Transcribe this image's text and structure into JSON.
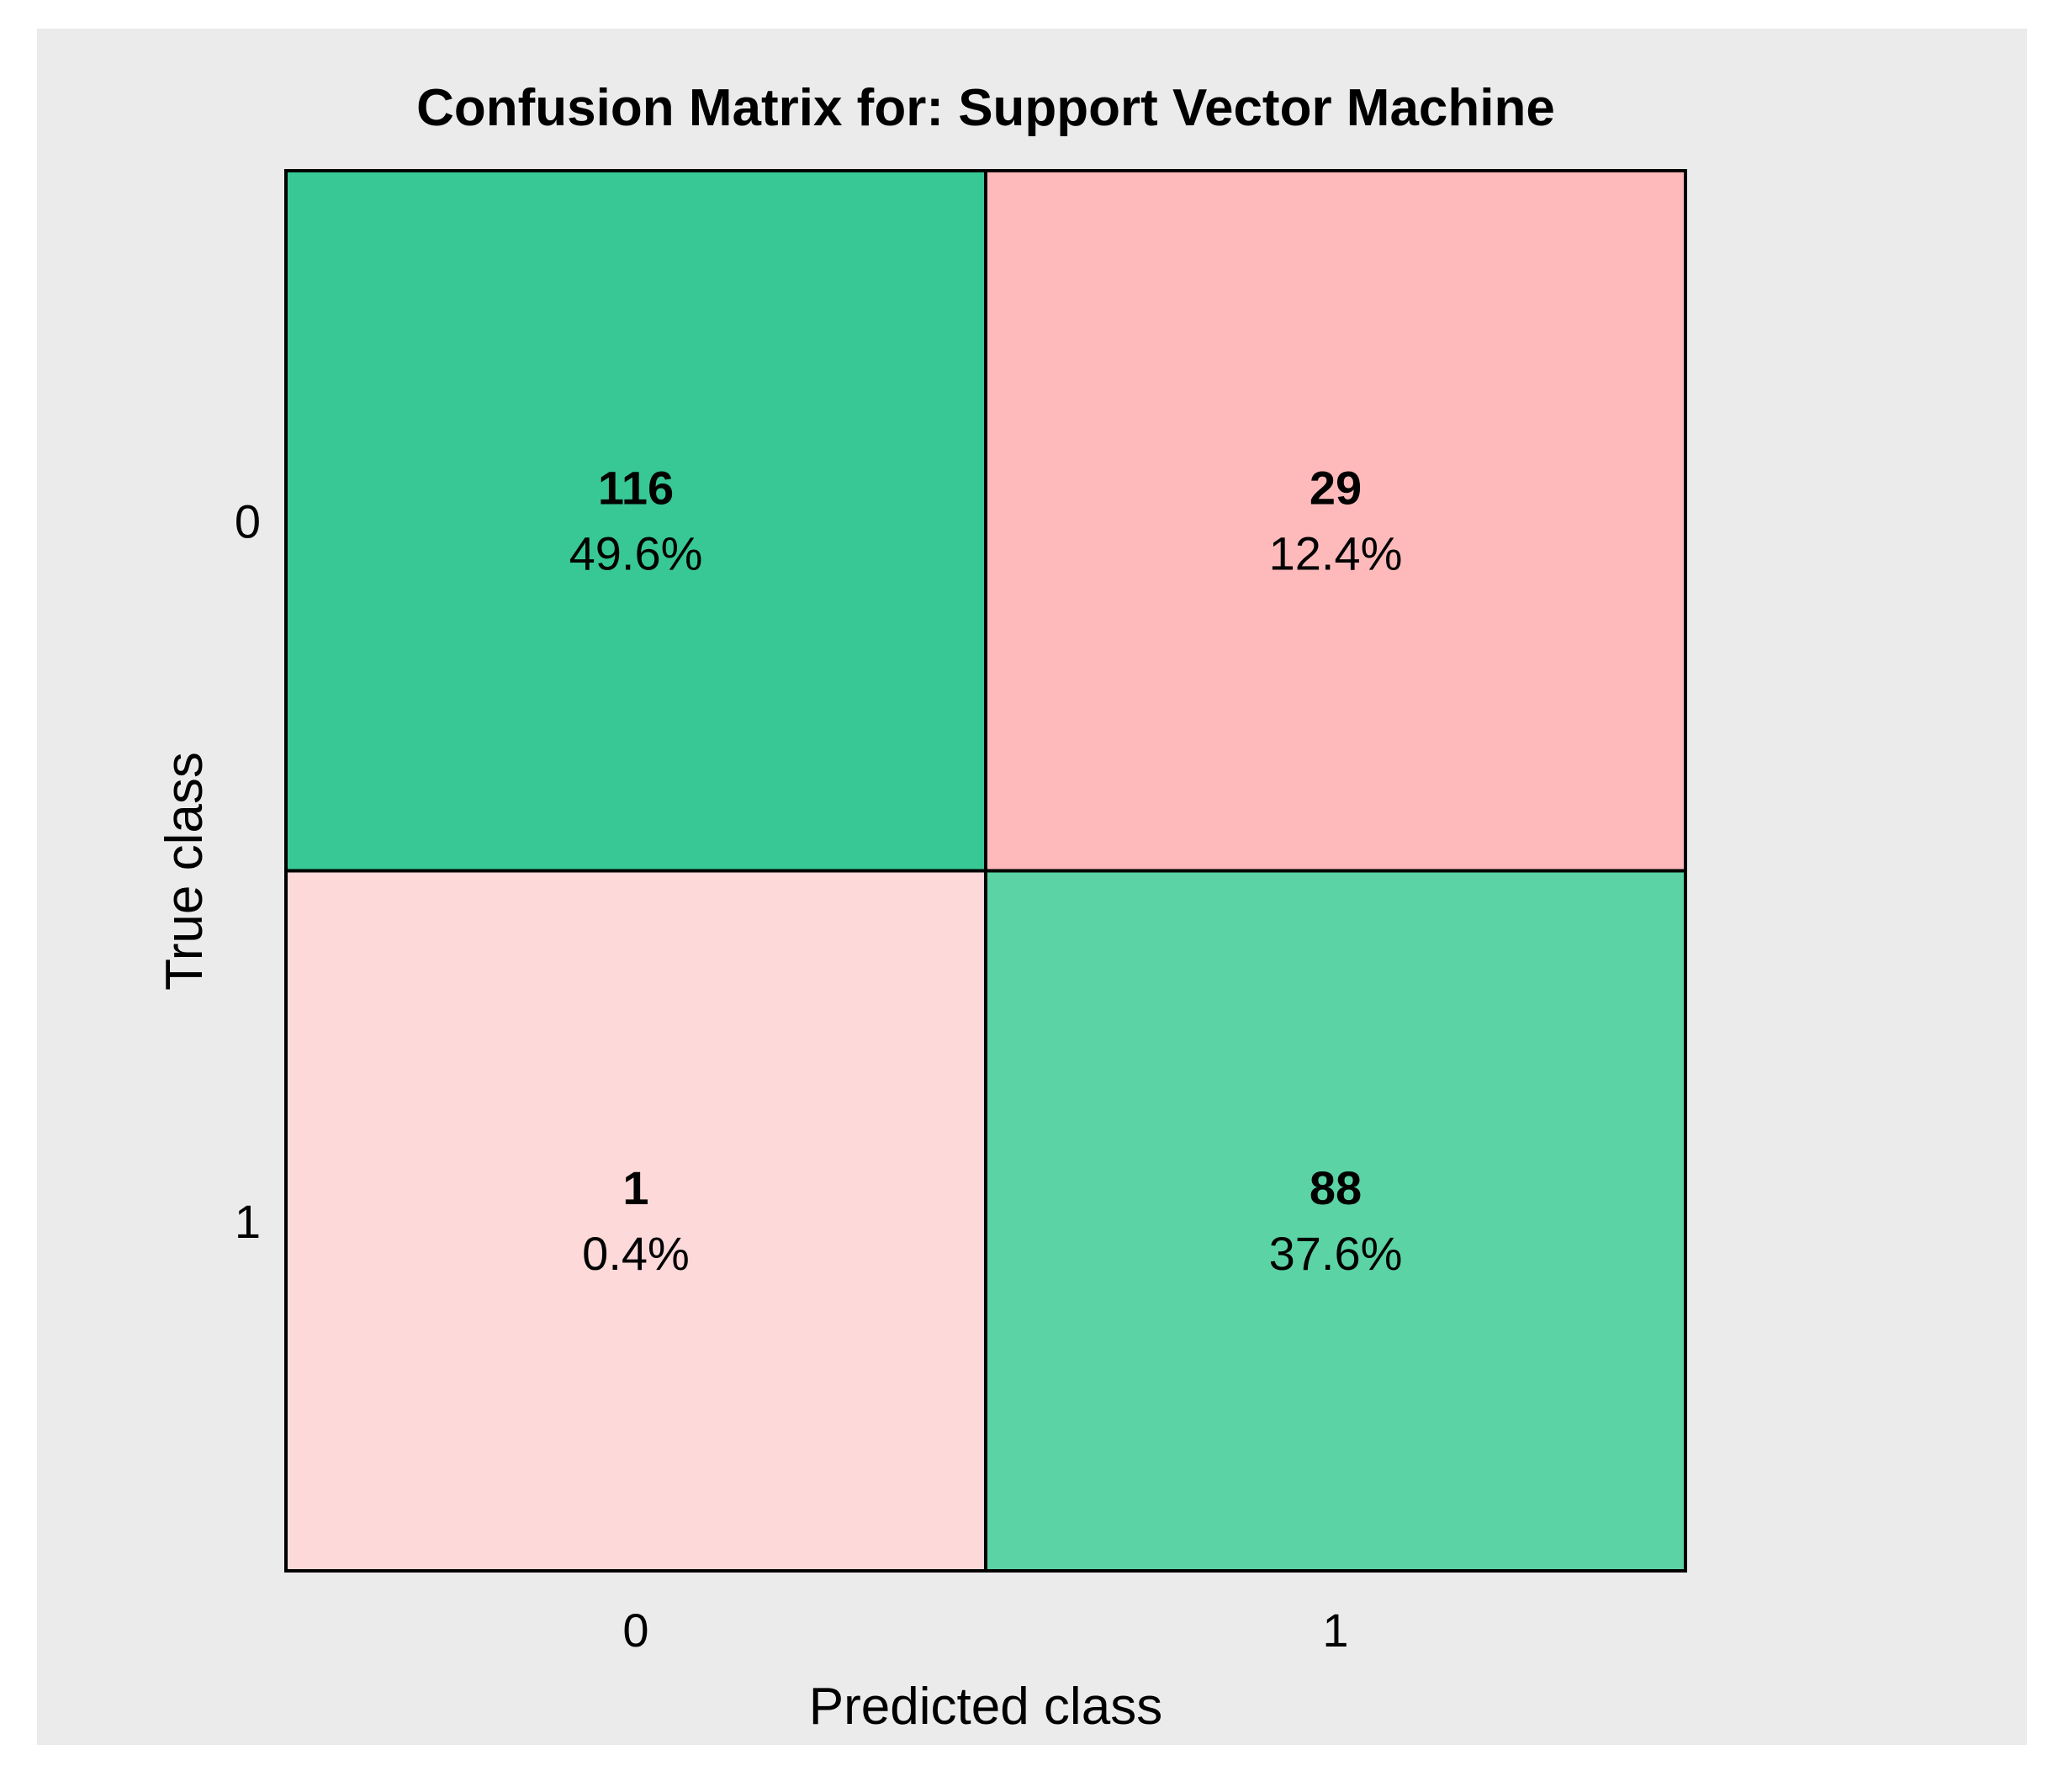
{
  "chart_data": {
    "type": "heatmap",
    "title": "Confusion Matrix for: Support Vector Machine",
    "xlabel": "Predicted class",
    "ylabel": "True class",
    "x_categories": [
      "0",
      "1"
    ],
    "y_categories": [
      "0",
      "1"
    ],
    "cells": [
      {
        "true": "0",
        "predicted": "0",
        "count": 116,
        "percent": "49.6%",
        "color": "#38C895"
      },
      {
        "true": "0",
        "predicted": "1",
        "count": 29,
        "percent": "12.4%",
        "color": "#FEBABB"
      },
      {
        "true": "1",
        "predicted": "0",
        "count": 1,
        "percent": "0.4%",
        "color": "#FED9D9"
      },
      {
        "true": "1",
        "predicted": "1",
        "count": 88,
        "percent": "37.6%",
        "color": "#5CD3A5"
      }
    ],
    "grid": false,
    "legend": "none"
  },
  "colors": {
    "figure_background": "#EBEBEB",
    "border": "#000000",
    "text": "#000000"
  }
}
